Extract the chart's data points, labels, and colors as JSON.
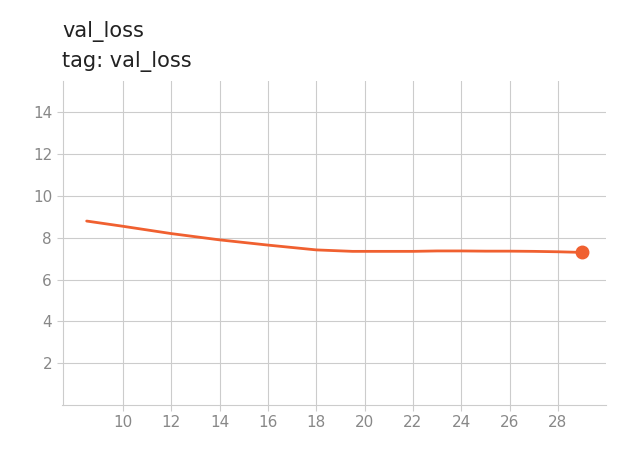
{
  "title_line1": "val_loss",
  "title_line2": "tag: val_loss",
  "line_color": "#f06030",
  "marker_color": "#f06030",
  "background_color": "#ffffff",
  "grid_color": "#cccccc",
  "x_values": [
    8.5,
    10,
    12,
    14,
    16,
    18,
    19.5,
    21,
    22,
    23,
    24,
    25,
    26,
    27,
    28,
    29.0
  ],
  "y_values": [
    8.8,
    8.55,
    8.2,
    7.9,
    7.65,
    7.42,
    7.35,
    7.35,
    7.35,
    7.37,
    7.37,
    7.36,
    7.36,
    7.35,
    7.33,
    7.3
  ],
  "xlim": [
    7.5,
    30.0
  ],
  "ylim": [
    0,
    15.5
  ],
  "xticks": [
    10,
    12,
    14,
    16,
    18,
    20,
    22,
    24,
    26,
    28
  ],
  "yticks": [
    2,
    4,
    6,
    8,
    10,
    12,
    14
  ],
  "line_width": 2.0,
  "marker_size": 9,
  "title_fontsize": 15,
  "subtitle_fontsize": 12,
  "tick_fontsize": 11,
  "tick_color": "#888888",
  "spine_color": "#cccccc"
}
